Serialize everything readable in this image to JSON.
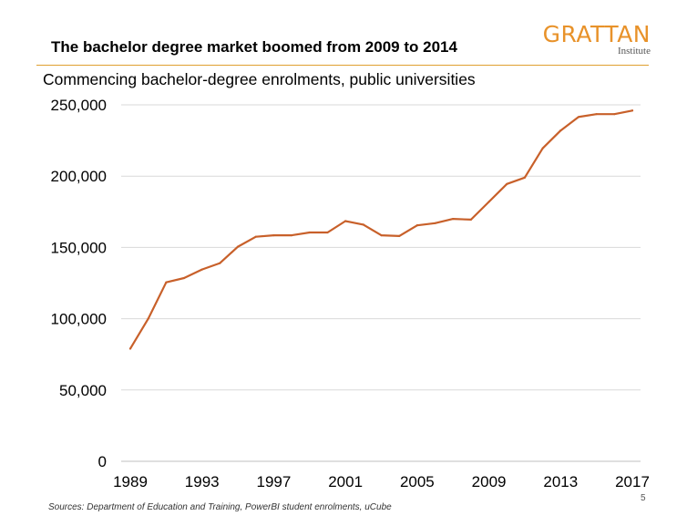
{
  "header": {
    "title": "The bachelor degree market boomed from 2009 to 2014",
    "brand_name": "GRATTAN",
    "brand_sub": "Institute"
  },
  "footer": {
    "source": "Sources: Department of Education and Training, PowerBI  student enrolments, uCube",
    "page_number": "5"
  },
  "colors": {
    "line": "#c8602a",
    "accent": "#e8922a",
    "rule": "#e0a030",
    "grid": "#d9d9d9"
  },
  "chart_data": {
    "type": "line",
    "title": "Commencing bachelor-degree enrolments, public universities",
    "xlabel": "",
    "ylabel": "",
    "x": [
      1989,
      1990,
      1991,
      1992,
      1993,
      1994,
      1995,
      1996,
      1997,
      1998,
      1999,
      2000,
      2001,
      2002,
      2003,
      2004,
      2005,
      2006,
      2007,
      2008,
      2009,
      2010,
      2011,
      2012,
      2013,
      2014,
      2015,
      2016,
      2017
    ],
    "series": [
      {
        "values": [
          79000,
          100000,
          125500,
          128500,
          134500,
          139000,
          150500,
          157500,
          158500,
          158500,
          160500,
          160500,
          168500,
          166000,
          158500,
          158000,
          165500,
          167000,
          170000,
          169500,
          182000,
          194500,
          199000,
          219500,
          232000,
          241500,
          243500,
          243500,
          246000
        ]
      }
    ],
    "xticks": [
      "1989",
      "1993",
      "1997",
      "2001",
      "2005",
      "2009",
      "2013",
      "2017"
    ],
    "yticks": [
      "0",
      "50,000",
      "100,000",
      "150,000",
      "200,000",
      "250,000"
    ],
    "ytick_values": [
      0,
      50000,
      100000,
      150000,
      200000,
      250000
    ],
    "xlim": [
      1989,
      2017
    ],
    "ylim": [
      0,
      250000
    ],
    "grid": true
  }
}
